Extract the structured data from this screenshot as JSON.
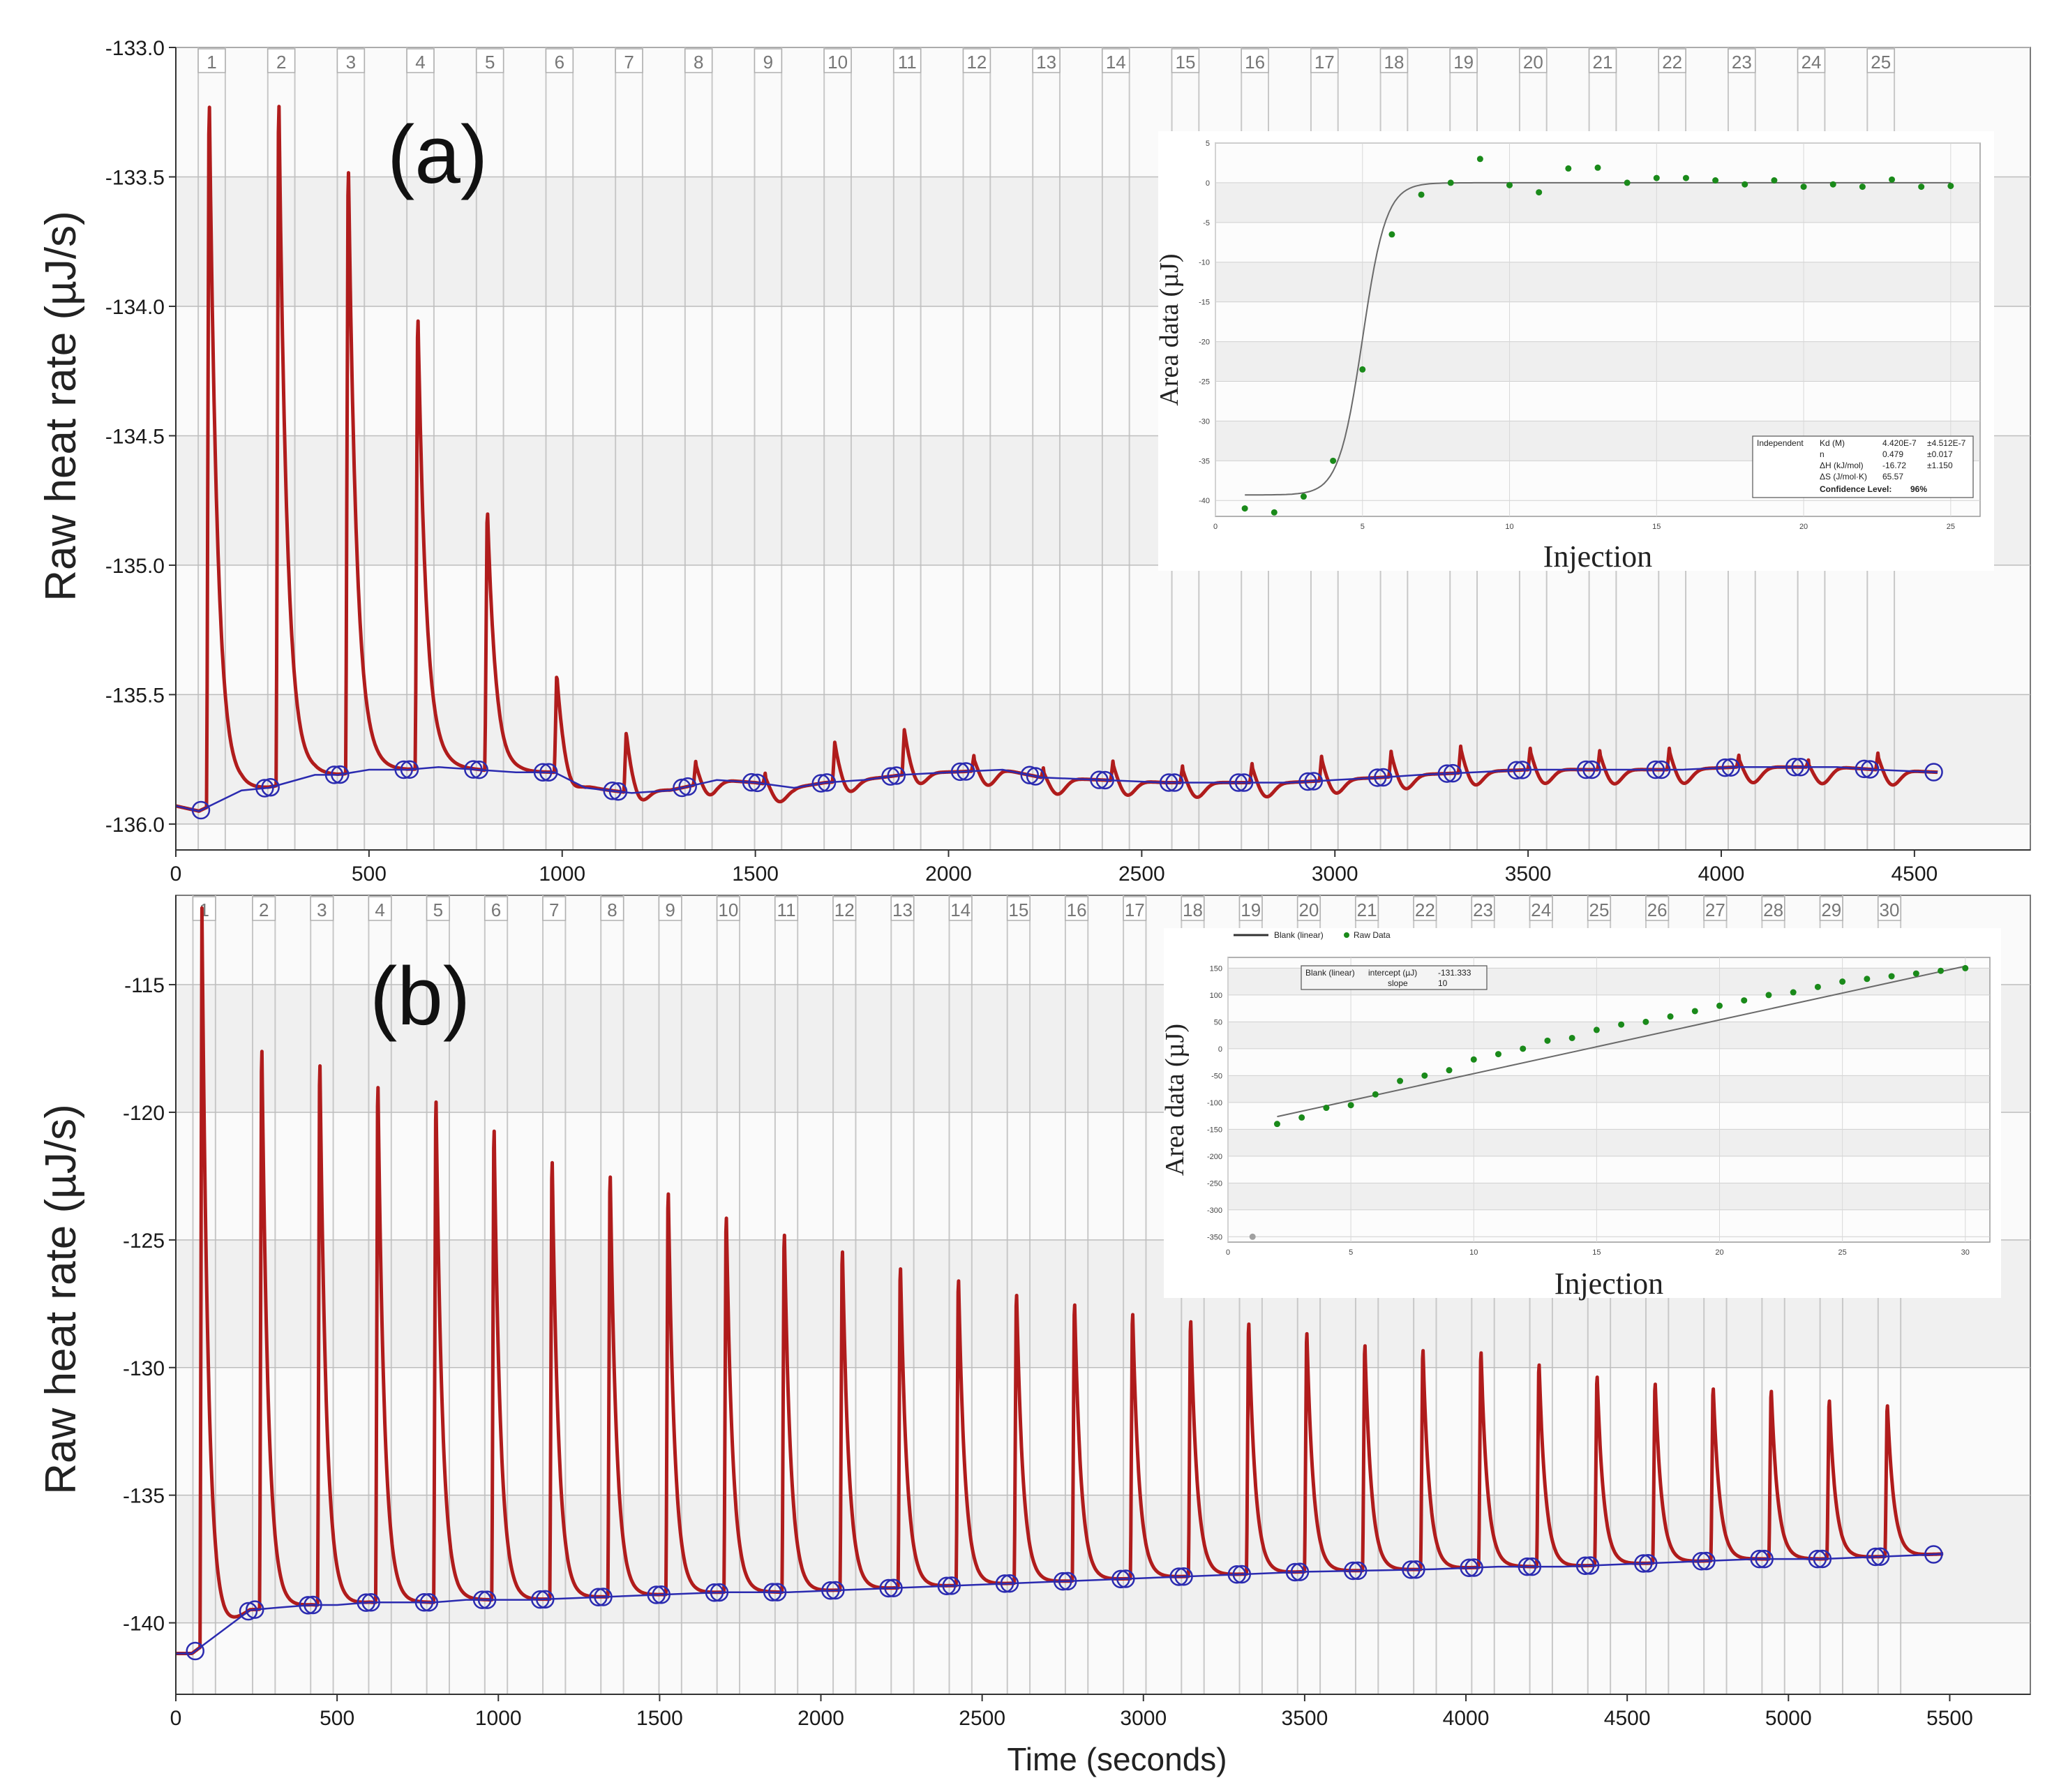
{
  "chart_data": [
    {
      "id": "a",
      "type": "line",
      "panel_label": "(a)",
      "xlabel": "",
      "ylabel": "Raw heat rate (µJ/s)",
      "xlim": [
        0,
        4800
      ],
      "ylim": [
        -136.1,
        -133.0
      ],
      "x_ticks": [
        0,
        500,
        1000,
        1500,
        2000,
        2500,
        3000,
        3500,
        4000,
        4500
      ],
      "y_ticks": [
        -133.0,
        -133.5,
        -134.0,
        -134.5,
        -135.0,
        -135.5,
        -136.0
      ],
      "x_tick_labels": [
        "0",
        "500",
        "1000",
        "1500",
        "2000",
        "2500",
        "3000",
        "3500",
        "4000",
        "4500"
      ],
      "y_tick_labels": [
        "-133.0",
        "-133.5",
        "-134.0",
        "-134.5",
        "-135.0",
        "-135.5",
        "-136.0"
      ],
      "injection_labels": [
        "1",
        "2",
        "3",
        "4",
        "5",
        "6",
        "7",
        "8",
        "9",
        "10",
        "11",
        "12",
        "13",
        "14",
        "15",
        "16",
        "17",
        "18",
        "19",
        "20",
        "21",
        "22",
        "23",
        "24",
        "25"
      ],
      "injection_times": [
        80,
        260,
        440,
        620,
        800,
        980,
        1160,
        1340,
        1520,
        1700,
        1880,
        2060,
        2240,
        2420,
        2600,
        2780,
        2960,
        3140,
        3320,
        3500,
        3680,
        3860,
        4040,
        4220,
        4400
      ],
      "peak_heights": [
        -133.1,
        -133.1,
        -133.37,
        -133.97,
        -134.75,
        -135.4,
        -135.63,
        -135.75,
        -135.8,
        -135.67,
        -135.62,
        -135.73,
        -135.78,
        -135.75,
        -135.77,
        -135.76,
        -135.73,
        -135.71,
        -135.69,
        -135.7,
        -135.71,
        -135.7,
        -135.73,
        -135.75,
        -135.72
      ],
      "series": [
        {
          "name": "Raw data",
          "color": "#b01c1c"
        },
        {
          "name": "Baseline",
          "color": "#2b2bb0",
          "x": [
            0,
            60,
            170,
            240,
            360,
            420,
            500,
            600,
            680,
            780,
            880,
            980,
            1060,
            1180,
            1280,
            1400,
            1500,
            1600,
            1680,
            1780,
            1880,
            2000,
            2140,
            2240,
            2400,
            2560,
            2720,
            2880,
            3000,
            3120,
            3220,
            3360,
            3500,
            3640,
            3760,
            3900,
            4040,
            4160,
            4300,
            4400,
            4560
          ],
          "y": [
            -135.93,
            -135.95,
            -135.87,
            -135.86,
            -135.81,
            -135.81,
            -135.79,
            -135.79,
            -135.78,
            -135.79,
            -135.8,
            -135.8,
            -135.86,
            -135.88,
            -135.87,
            -135.83,
            -135.84,
            -135.86,
            -135.84,
            -135.83,
            -135.81,
            -135.8,
            -135.79,
            -135.82,
            -135.83,
            -135.84,
            -135.84,
            -135.84,
            -135.83,
            -135.82,
            -135.81,
            -135.8,
            -135.79,
            -135.79,
            -135.79,
            -135.79,
            -135.78,
            -135.78,
            -135.78,
            -135.79,
            -135.8
          ]
        }
      ],
      "inset": {
        "type": "scatter",
        "xlabel": "Injection",
        "ylabel": "Area data (µJ)",
        "xlim": [
          0,
          26
        ],
        "ylim": [
          -42,
          5
        ],
        "x_ticks": [
          0,
          5,
          10,
          15,
          20,
          25
        ],
        "y_ticks": [
          5,
          0,
          -5,
          -10,
          -15,
          -20,
          -25,
          -30,
          -35,
          -40
        ],
        "x_tick_labels": [
          "0",
          "5",
          "10",
          "15",
          "20",
          "25"
        ],
        "y_tick_labels": [
          "5",
          "0",
          "-5",
          "-10",
          "-15",
          "-20",
          "-25",
          "-30",
          "-35",
          "-40"
        ],
        "x": [
          1,
          2,
          3,
          4,
          5,
          6,
          7,
          8,
          9,
          10,
          11,
          12,
          13,
          14,
          15,
          16,
          17,
          18,
          19,
          20,
          21,
          22,
          23,
          24,
          25
        ],
        "y": [
          -41,
          -41.5,
          -39.5,
          -35,
          -23.5,
          -6.5,
          -1.5,
          0,
          3,
          -0.3,
          -1.2,
          1.8,
          1.9,
          0,
          0.6,
          0.6,
          0.3,
          -0.2,
          0.3,
          -0.5,
          -0.2,
          -0.5,
          0.4,
          -0.5,
          -0.4
        ],
        "fit": {
          "model": "Independent",
          "bottom": -39.3,
          "midpoint": 5.0,
          "width": 0.4
        },
        "results": {
          "model": "Independent",
          "rows": [
            {
              "label": "Kd (M)",
              "value": "4.420E-7",
              "error": "±4.512E-7"
            },
            {
              "label": "n",
              "value": "0.479",
              "error": "±0.017"
            },
            {
              "label": "ΔH (kJ/mol)",
              "value": "-16.72",
              "error": "±1.150"
            },
            {
              "label": "ΔS (J/mol·K)",
              "value": "65.57",
              "error": ""
            }
          ],
          "confidence_label": "Confidence Level:",
          "confidence_value": "96%"
        },
        "point_color": "#1a8a1a"
      }
    },
    {
      "id": "b",
      "type": "line",
      "panel_label": "(b)",
      "xlabel": "Time (seconds)",
      "ylabel": "Raw heat rate (µJ/s)",
      "xlim": [
        0,
        5750
      ],
      "ylim": [
        -142.8,
        -111.5
      ],
      "x_ticks": [
        0,
        500,
        1000,
        1500,
        2000,
        2500,
        3000,
        3500,
        4000,
        4500,
        5000,
        5500
      ],
      "y_ticks": [
        -115,
        -120,
        -125,
        -130,
        -135,
        -140
      ],
      "x_tick_labels": [
        "0",
        "500",
        "1000",
        "1500",
        "2000",
        "2500",
        "3000",
        "3500",
        "4000",
        "4500",
        "5000",
        "5500"
      ],
      "y_tick_labels": [
        "-115",
        "-120",
        "-125",
        "-130",
        "-135",
        "-140"
      ],
      "injection_labels": [
        "1",
        "2",
        "3",
        "4",
        "5",
        "6",
        "7",
        "8",
        "9",
        "10",
        "11",
        "12",
        "13",
        "14",
        "15",
        "16",
        "17",
        "18",
        "19",
        "20",
        "21",
        "22",
        "23",
        "24",
        "25",
        "26",
        "27",
        "28",
        "29",
        "30"
      ],
      "injection_times": [
        75,
        260,
        440,
        620,
        800,
        980,
        1160,
        1340,
        1520,
        1700,
        1880,
        2060,
        2240,
        2420,
        2600,
        2780,
        2960,
        3140,
        3320,
        3500,
        3680,
        3860,
        4040,
        4220,
        4400,
        4580,
        4760,
        4940,
        5120,
        5300
      ],
      "peak_heights": [
        -112,
        -116.5,
        -117.1,
        -118,
        -118.6,
        -119.8,
        -121.1,
        -121.7,
        -122.4,
        -123.4,
        -124.1,
        -124.8,
        -125.5,
        -126,
        -126.6,
        -127,
        -127.4,
        -127.7,
        -127.8,
        -128.2,
        -128.7,
        -128.9,
        -129,
        -129.5,
        -130,
        -130.3,
        -130.5,
        -130.6,
        -131,
        -131.2
      ],
      "series": [
        {
          "name": "Raw data",
          "color": "#b01c1c"
        },
        {
          "name": "Baseline",
          "color": "#2b2bb0",
          "x": [
            0,
            50,
            230,
            320,
            420,
            500,
            600,
            700,
            800,
            900,
            1000,
            1100,
            1300,
            1500,
            1700,
            1900,
            2100,
            2300,
            2500,
            2700,
            2900,
            3100,
            3300,
            3500,
            3700,
            3900,
            4100,
            4300,
            4500,
            4700,
            4900,
            5100,
            5300,
            5400,
            5480
          ],
          "y": [
            -141.2,
            -141.2,
            -139.5,
            -139.4,
            -139.3,
            -139.3,
            -139.2,
            -139.2,
            -139.2,
            -139.1,
            -139.1,
            -139.1,
            -139,
            -138.9,
            -138.8,
            -138.8,
            -138.7,
            -138.6,
            -138.5,
            -138.4,
            -138.3,
            -138.2,
            -138.1,
            -138,
            -137.95,
            -137.9,
            -137.8,
            -137.8,
            -137.7,
            -137.6,
            -137.5,
            -137.5,
            -137.4,
            -137.35,
            -137.3
          ]
        }
      ],
      "inset": {
        "type": "scatter",
        "xlabel": "Injection",
        "ylabel": "Area data (µJ)",
        "legend": [
          "Blank (linear)",
          "Raw Data"
        ],
        "xlim": [
          0,
          31
        ],
        "ylim": [
          -360,
          170
        ],
        "x_ticks": [
          0,
          5,
          10,
          15,
          20,
          25,
          30
        ],
        "y_ticks": [
          150,
          100,
          50,
          0,
          -50,
          -100,
          -150,
          -200,
          -250,
          -300,
          -350
        ],
        "x_tick_labels": [
          "0",
          "5",
          "10",
          "15",
          "20",
          "25",
          "30"
        ],
        "y_tick_labels": [
          "150",
          "100",
          "50",
          "0",
          "-50",
          "-100",
          "-150",
          "-200",
          "-250",
          "-300",
          "-350"
        ],
        "x": [
          1,
          2,
          3,
          4,
          5,
          6,
          7,
          8,
          9,
          10,
          11,
          12,
          13,
          14,
          15,
          16,
          17,
          18,
          19,
          20,
          21,
          22,
          23,
          24,
          25,
          26,
          27,
          28,
          29,
          30
        ],
        "y": [
          -350,
          -140,
          -128,
          -110,
          -105,
          -85,
          -60,
          -50,
          -40,
          -20,
          -10,
          0,
          15,
          20,
          35,
          45,
          50,
          60,
          70,
          80,
          90,
          100,
          105,
          115,
          125,
          130,
          135,
          140,
          145,
          150
        ],
        "fit": {
          "intercept": -131.333,
          "slope": 10
        },
        "results": {
          "model": "Blank (linear)",
          "intercept_label": "intercept (µJ)",
          "intercept_value": "-131.333",
          "slope_label": "slope",
          "slope_value": "10"
        },
        "point_color": "#1a8a1a"
      }
    }
  ]
}
